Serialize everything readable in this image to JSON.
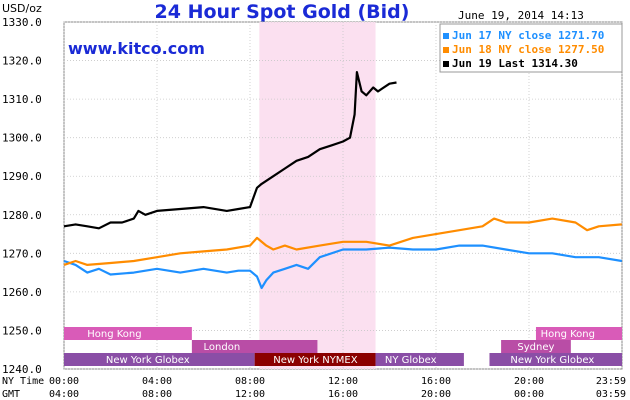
{
  "header": {
    "unit_label": "USD/oz",
    "title": "24 Hour Spot Gold (Bid)",
    "datetime": "June 19, 2014 14:13",
    "watermark": "www.kitco.com"
  },
  "legend": [
    {
      "label": "Jun 17 NY close 1271.70",
      "color": "#1e90ff"
    },
    {
      "label": "Jun 18 NY close 1277.50",
      "color": "#ff8c00"
    },
    {
      "label": "Jun 19 Last 1314.30",
      "color": "#000000"
    }
  ],
  "axis": {
    "ny_time_label": "NY Time",
    "gmt_label": "GMT",
    "ny_ticks": [
      "00:00",
      "04:00",
      "08:00",
      "12:00",
      "16:00",
      "20:00",
      "23:59"
    ],
    "gmt_ticks": [
      "04:00",
      "08:00",
      "12:00",
      "16:00",
      "20:00",
      "00:00",
      "03:59"
    ]
  },
  "markets": {
    "hong_kong": "Hong Kong",
    "london": "London",
    "ny_globex": "New York Globex",
    "ny_nymex": "New York NYMEX",
    "ny_globex_short": "NY Globex",
    "sydney": "Sydney",
    "hong_kong_2": "Hong Kong",
    "ny_globex_2": "New York Globex"
  },
  "colors": {
    "jun17": "#1e90ff",
    "jun18": "#ff8c00",
    "jun19": "#000000",
    "highlight": "#fbe0f0",
    "hong_kong_bar": "#d95bb8",
    "london_bar": "#b94da6",
    "globex_bar": "#8a4ea6",
    "nymex_bar": "#8b0000",
    "title": "#1a2ad6"
  },
  "chart_data": {
    "type": "line",
    "title": "24 Hour Spot Gold (Bid)",
    "ylabel": "USD/oz",
    "xlabel": "NY Time / GMT",
    "ylim": [
      1240,
      1330
    ],
    "yticks": [
      1240.0,
      1250.0,
      1260.0,
      1270.0,
      1280.0,
      1290.0,
      1300.0,
      1310.0,
      1320.0,
      1330.0
    ],
    "x_unit": "hours (NY time)",
    "xlim": [
      0,
      24
    ],
    "highlight_hours": [
      8.4,
      13.4
    ],
    "grid": true,
    "legend_position": "top-right",
    "series": [
      {
        "name": "Jun 17 NY close 1271.70",
        "x": [
          0,
          0.5,
          1,
          1.5,
          2,
          3,
          4,
          5,
          6,
          7,
          7.5,
          8,
          8.3,
          8.5,
          8.7,
          9,
          9.5,
          10,
          10.5,
          11,
          12,
          13,
          14,
          15,
          16,
          17,
          18,
          19,
          20,
          21,
          22,
          23,
          23.99
        ],
        "values": [
          1268,
          1267,
          1265,
          1266,
          1264.5,
          1265,
          1266,
          1265,
          1266,
          1265,
          1265.5,
          1265.5,
          1264,
          1261,
          1263,
          1265,
          1266,
          1267,
          1266,
          1269,
          1271,
          1271,
          1271.5,
          1271,
          1271,
          1272,
          1272,
          1271,
          1270,
          1270,
          1269,
          1269,
          1268
        ]
      },
      {
        "name": "Jun 18 NY close 1277.50",
        "x": [
          0,
          0.5,
          1,
          2,
          3,
          4,
          5,
          6,
          7,
          8,
          8.3,
          8.7,
          9,
          9.5,
          10,
          11,
          12,
          13,
          14,
          15,
          16,
          17,
          18,
          18.5,
          19,
          20,
          21,
          22,
          22.5,
          23,
          23.99
        ],
        "values": [
          1267,
          1268,
          1267,
          1267.5,
          1268,
          1269,
          1270,
          1270.5,
          1271,
          1272,
          1274,
          1272,
          1271,
          1272,
          1271,
          1272,
          1273,
          1273,
          1272,
          1274,
          1275,
          1276,
          1277,
          1279,
          1278,
          1278,
          1279,
          1278,
          1276,
          1277,
          1277.5
        ]
      },
      {
        "name": "Jun 19 Last 1314.30",
        "x": [
          0,
          0.5,
          1,
          1.5,
          2,
          2.5,
          3,
          3.2,
          3.5,
          4,
          5,
          6,
          7,
          7.5,
          8,
          8.3,
          8.5,
          9,
          9.5,
          10,
          10.5,
          11,
          11.5,
          12,
          12.3,
          12.5,
          12.6,
          12.8,
          13,
          13.3,
          13.5,
          14,
          14.3
        ],
        "values": [
          1277,
          1277.5,
          1277,
          1276.5,
          1278,
          1278,
          1279,
          1281,
          1280,
          1281,
          1281.5,
          1282,
          1281,
          1281.5,
          1282,
          1287,
          1288,
          1290,
          1292,
          1294,
          1295,
          1297,
          1298,
          1299,
          1300,
          1306,
          1317,
          1312,
          1311,
          1313,
          1312,
          1314,
          1314.3
        ]
      }
    ]
  }
}
